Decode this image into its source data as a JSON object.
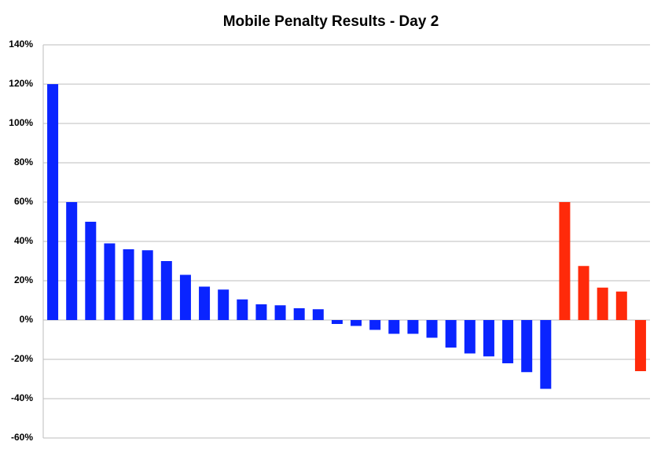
{
  "chart_data": {
    "type": "bar",
    "title": "Mobile Penalty Results - Day 2",
    "categories": [
      null,
      null,
      null,
      null,
      null,
      null,
      null,
      null,
      null,
      null,
      null,
      null,
      null,
      null,
      null,
      null,
      null,
      null,
      null,
      null,
      null,
      null,
      null,
      null,
      null,
      null,
      null,
      null,
      null,
      null,
      null,
      null
    ],
    "values": [
      120,
      60,
      50,
      39,
      36,
      35.5,
      30,
      23,
      17,
      15.5,
      10.5,
      8,
      7.5,
      6,
      5.5,
      -2,
      -3,
      -5,
      -7,
      -7,
      -9,
      -14,
      -17,
      -18.5,
      -22,
      -26.5,
      -35,
      60,
      27.5,
      16.5,
      14.5,
      -26
    ],
    "colors": [
      "#0a24ff",
      "#0a24ff",
      "#0a24ff",
      "#0a24ff",
      "#0a24ff",
      "#0a24ff",
      "#0a24ff",
      "#0a24ff",
      "#0a24ff",
      "#0a24ff",
      "#0a24ff",
      "#0a24ff",
      "#0a24ff",
      "#0a24ff",
      "#0a24ff",
      "#0a24ff",
      "#0a24ff",
      "#0a24ff",
      "#0a24ff",
      "#0a24ff",
      "#0a24ff",
      "#0a24ff",
      "#0a24ff",
      "#0a24ff",
      "#0a24ff",
      "#0a24ff",
      "#0a24ff",
      "#ff2a0a",
      "#ff2a0a",
      "#ff2a0a",
      "#ff2a0a",
      "#ff2a0a"
    ],
    "ylim": [
      -60,
      140
    ],
    "yticks": [
      {
        "value": -60,
        "label": "-60%"
      },
      {
        "value": -40,
        "label": "-40%"
      },
      {
        "value": -20,
        "label": "-20%"
      },
      {
        "value": 0,
        "label": "0%"
      },
      {
        "value": 20,
        "label": "20%"
      },
      {
        "value": 40,
        "label": "40%"
      },
      {
        "value": 60,
        "label": "60%"
      },
      {
        "value": 80,
        "label": "80%"
      },
      {
        "value": 100,
        "label": "100%"
      },
      {
        "value": 120,
        "label": "120%"
      },
      {
        "value": 140,
        "label": "140%"
      }
    ],
    "grid": true
  }
}
